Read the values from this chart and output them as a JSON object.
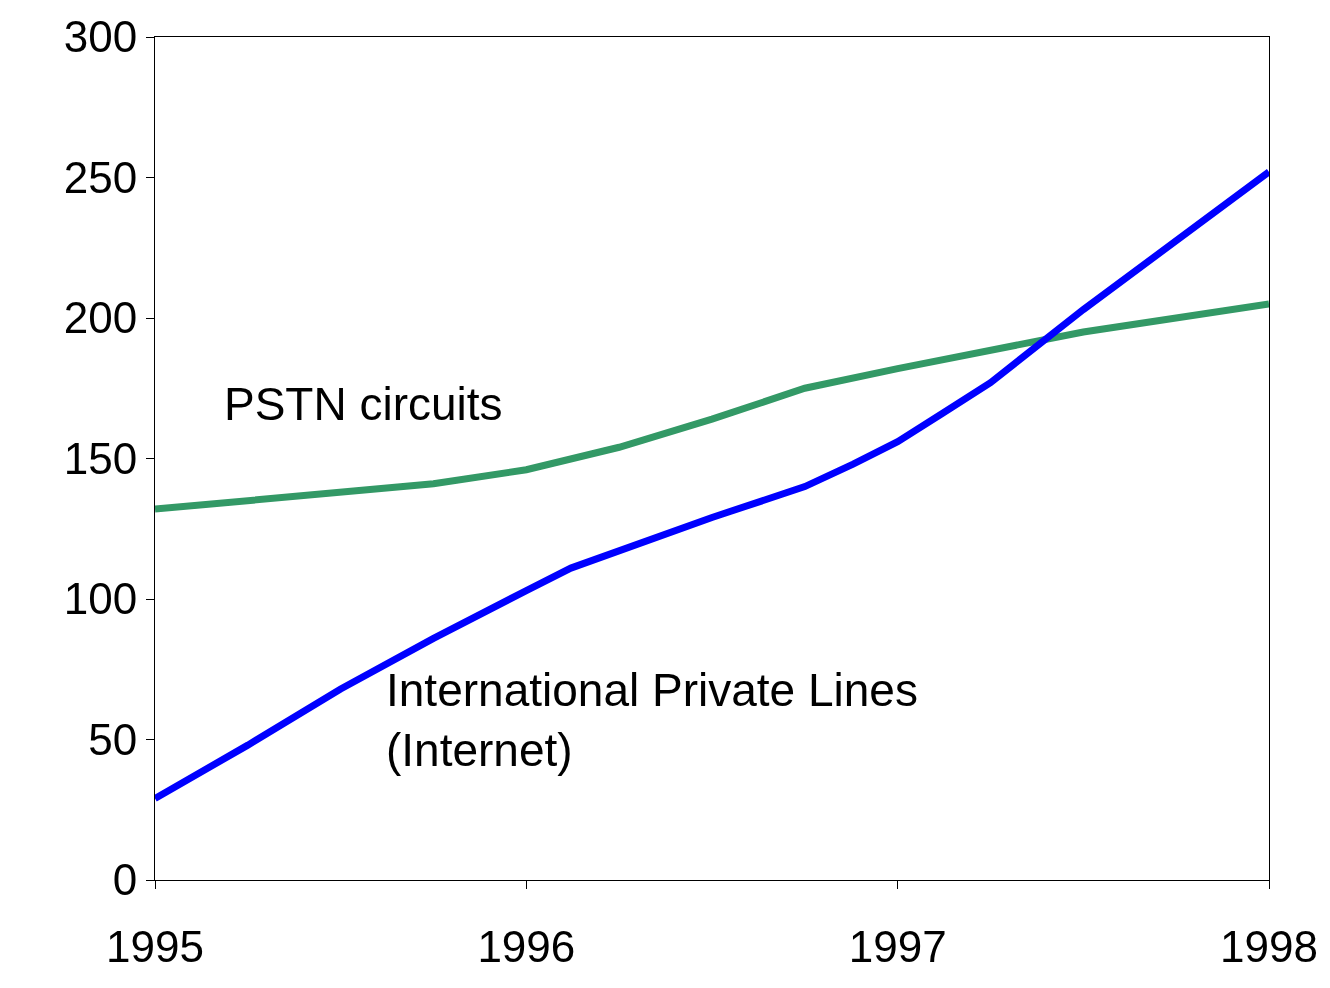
{
  "chart_data": {
    "type": "line",
    "xlim": [
      1995,
      1998
    ],
    "xticks": [
      1995,
      1996,
      1997,
      1998
    ],
    "ylim": [
      0,
      300
    ],
    "yticks": [
      0,
      50,
      100,
      150,
      200,
      250,
      300
    ],
    "legend": false,
    "marker": "none",
    "line_style": "solid",
    "series": [
      {
        "name": "PSTN circuits",
        "color": "#339966",
        "x": [
          1995,
          1995.75,
          1996,
          1996.25,
          1996.5,
          1996.75,
          1997,
          1997.5,
          1998
        ],
        "values": [
          132,
          141,
          146,
          154,
          164,
          175,
          182,
          195,
          205
        ]
      },
      {
        "name": "International Private Lines\n(Internet)",
        "color": "#0000ff",
        "x": [
          1995,
          1995.25,
          1995.5,
          1995.75,
          1996,
          1996.12,
          1996.5,
          1996.75,
          1996.88,
          1997,
          1997.12,
          1997.25,
          1997.5,
          1998
        ],
        "values": [
          29,
          48,
          68,
          86,
          103,
          111,
          129,
          140,
          148,
          156,
          166,
          177,
          203,
          252
        ]
      }
    ]
  }
}
